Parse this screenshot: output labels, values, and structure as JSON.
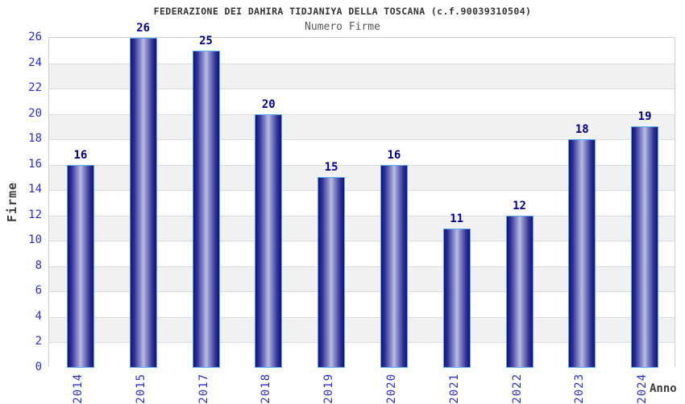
{
  "page": {
    "background": "#ffffff"
  },
  "chart_data": {
    "type": "bar",
    "title": "FEDERAZIONE DEI DAHIRA TIDJANIYA DELLA TOSCANA (c.f.90039310504)",
    "subtitle": "Numero Firme",
    "xlabel": "Anno",
    "ylabel": "Firme",
    "categories": [
      "2014",
      "2015",
      "2017",
      "2018",
      "2019",
      "2020",
      "2021",
      "2022",
      "2023",
      "2024"
    ],
    "values": [
      16,
      26,
      25,
      20,
      15,
      16,
      11,
      12,
      18,
      19
    ],
    "ylim": [
      0,
      26
    ],
    "yticks": [
      0,
      2,
      4,
      6,
      8,
      10,
      12,
      14,
      16,
      18,
      20,
      22,
      24,
      26
    ],
    "bar_value_labels": true,
    "grid": "horizontal gridline every 2 units with alternating white/gray bands",
    "legend": "none"
  },
  "colors": {
    "title": "#333333",
    "subtitle": "#575757",
    "axis_tick_label": "#2d2dd0",
    "value_label": "#00008b",
    "bar_border": "#55a7ef",
    "bar_gradient_dark": "#121277",
    "bar_gradient_light": "#bcc0e4",
    "band_alt_gray": "#f1f1f1",
    "grid_line": "#dcdcdc",
    "plot_border": "#cfcfcf",
    "axis_title": "#3c3c3c"
  }
}
